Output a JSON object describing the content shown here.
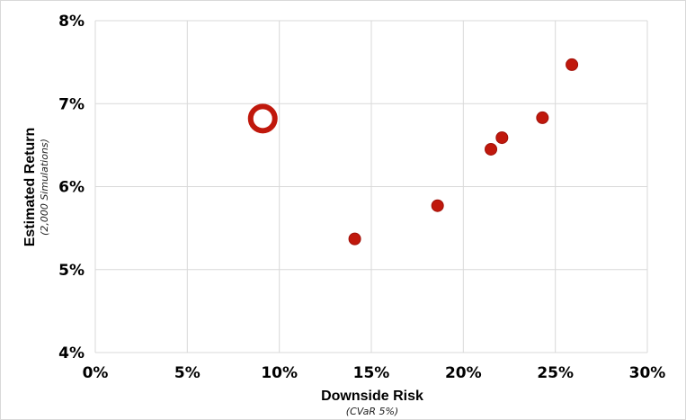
{
  "chart_data": {
    "type": "scatter",
    "title": "",
    "xlabel": "Downside Risk",
    "xlabel_sub": "(CVaR 5%)",
    "ylabel": "Estimated Return",
    "ylabel_sub": "(2,000 Simulations)",
    "xlim": [
      0,
      30
    ],
    "ylim": [
      4,
      8
    ],
    "x_ticks": [
      0,
      5,
      10,
      15,
      20,
      25,
      30
    ],
    "x_tick_labels": [
      "0%",
      "5%",
      "10%",
      "15%",
      "20%",
      "25%",
      "30%"
    ],
    "y_ticks": [
      4,
      5,
      6,
      7,
      8
    ],
    "y_tick_labels": [
      "4%",
      "5%",
      "6%",
      "7%",
      "8%"
    ],
    "grid": true,
    "legend": "none",
    "colors": {
      "marker": "#c0180c",
      "marker_stroke": "#a01008",
      "grid": "#d9d9d9",
      "frame": "#d9d9d9"
    },
    "series": [
      {
        "marker": "filled-circle",
        "points": [
          {
            "x": 14.1,
            "y": 5.37
          },
          {
            "x": 18.6,
            "y": 5.77
          },
          {
            "x": 21.5,
            "y": 6.45
          },
          {
            "x": 22.1,
            "y": 6.59
          },
          {
            "x": 24.3,
            "y": 6.83
          },
          {
            "x": 25.9,
            "y": 7.47
          }
        ]
      },
      {
        "marker": "open-ring",
        "points": [
          {
            "x": 9.1,
            "y": 6.82
          }
        ]
      }
    ]
  }
}
